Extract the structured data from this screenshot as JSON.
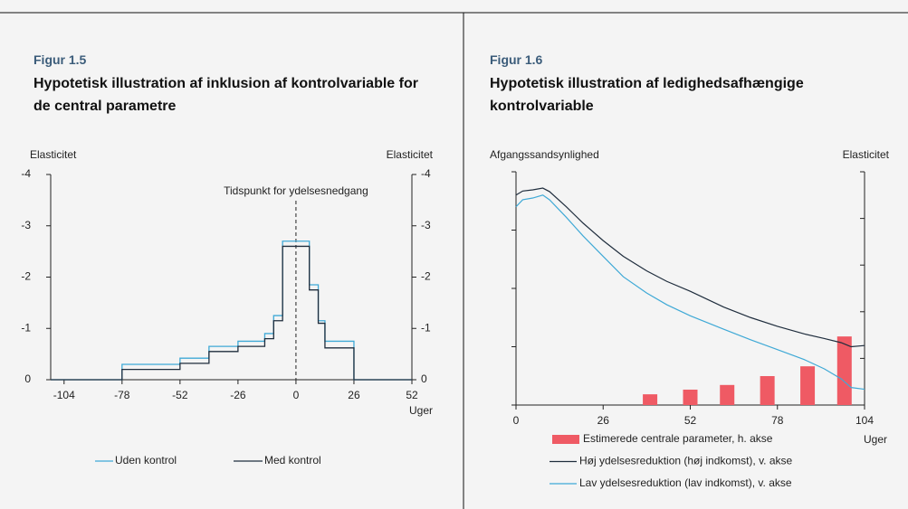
{
  "chart_data": [
    {
      "type": "line",
      "figure": "Figur 1.5",
      "title": "Hypotetisk illustration af inklusion af kontrolvariable for de central parametre",
      "ylabel": "Elasticitet",
      "y2label": "Elasticitet",
      "xlabel": "Uger",
      "annotation": "Tidspunkt for ydelsesnedgang",
      "vline": 0,
      "xlim": [
        -110,
        52
      ],
      "xticks": [
        -104,
        -78,
        -52,
        -26,
        0,
        26,
        52
      ],
      "ylim": [
        0,
        -4
      ],
      "yticks": [
        0,
        -1,
        -2,
        -3,
        -4
      ],
      "x": [
        -110,
        -78,
        -78,
        -52,
        -52,
        -39,
        -39,
        -26,
        -26,
        -14,
        -14,
        -10,
        -10,
        -6,
        -6,
        6,
        6,
        10,
        10,
        13,
        13,
        26,
        26,
        52
      ],
      "series": [
        {
          "name": "Uden kontrol",
          "color": "#3fa9d6",
          "values": [
            0,
            0,
            -0.3,
            -0.3,
            -0.42,
            -0.42,
            -0.65,
            -0.65,
            -0.75,
            -0.75,
            -0.9,
            -0.9,
            -1.25,
            -1.25,
            -2.7,
            -2.7,
            -1.85,
            -1.85,
            -1.15,
            -1.15,
            -0.75,
            -0.75,
            0,
            0
          ]
        },
        {
          "name": "Med kontrol",
          "color": "#1f2d3d",
          "values": [
            0,
            0,
            -0.2,
            -0.2,
            -0.32,
            -0.32,
            -0.55,
            -0.55,
            -0.65,
            -0.65,
            -0.8,
            -0.8,
            -1.15,
            -1.15,
            -2.6,
            -2.6,
            -1.75,
            -1.75,
            -1.1,
            -1.1,
            -0.62,
            -0.62,
            0,
            0
          ]
        }
      ]
    },
    {
      "type": "combo",
      "figure": "Figur 1.6",
      "title": "Hypotetisk illustration af ledighedsafhængige kontrolvariable",
      "ylabel": "Afgangssandsynlighed",
      "y2label": "Elasticitet",
      "xlabel": "Uger",
      "xlim": [
        0,
        104
      ],
      "xticks": [
        0,
        26,
        52,
        78,
        104
      ],
      "ylim": [
        0,
        4
      ],
      "yticks": [
        0,
        1,
        2,
        3,
        4
      ],
      "y2lim": [
        0,
        5
      ],
      "y2ticks": [
        0,
        1,
        2,
        3,
        4,
        5
      ],
      "series": [
        {
          "name": "Estimerede centrale parameter, h. akse",
          "kind": "bar",
          "axis": "y2",
          "color": "#ef5a64",
          "x": [
            40,
            52,
            63,
            75,
            87,
            98
          ],
          "values": [
            0.23,
            0.33,
            0.43,
            0.62,
            0.83,
            1.47
          ]
        },
        {
          "name": "Høj ydelsesreduktion (høj indkomst), v. akse",
          "kind": "line",
          "axis": "y",
          "color": "#1f2d3d",
          "x": [
            0,
            2,
            5,
            8,
            10,
            15,
            20,
            26,
            32,
            39,
            45,
            52,
            62,
            70,
            78,
            86,
            92,
            97,
            100,
            104
          ],
          "values": [
            3.6,
            3.67,
            3.69,
            3.72,
            3.66,
            3.4,
            3.12,
            2.82,
            2.55,
            2.3,
            2.12,
            1.95,
            1.68,
            1.5,
            1.35,
            1.22,
            1.14,
            1.07,
            1.0,
            1.02
          ]
        },
        {
          "name": "Lav ydelsesreduktion (lav indkomst), v. akse",
          "kind": "line",
          "axis": "y",
          "color": "#3fa9d6",
          "x": [
            0,
            2,
            5,
            8,
            10,
            15,
            20,
            26,
            32,
            39,
            45,
            52,
            62,
            70,
            78,
            86,
            92,
            97,
            100,
            104
          ],
          "values": [
            3.4,
            3.52,
            3.55,
            3.6,
            3.52,
            3.22,
            2.9,
            2.55,
            2.2,
            1.92,
            1.72,
            1.53,
            1.3,
            1.12,
            0.95,
            0.78,
            0.62,
            0.45,
            0.3,
            0.27
          ]
        }
      ]
    }
  ]
}
